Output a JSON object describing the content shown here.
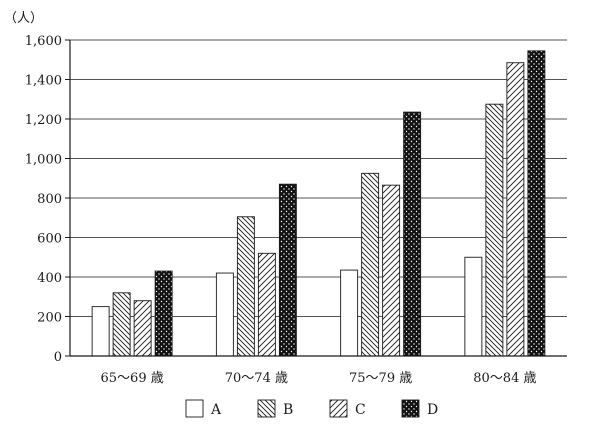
{
  "chart_data": {
    "type": "bar",
    "unit_label": "（人）",
    "categories": [
      "65〜69 歳",
      "70〜74 歳",
      "75〜79 歳",
      "80〜84 歳"
    ],
    "series": [
      {
        "name": "A",
        "pattern": "blank",
        "values": [
          250,
          420,
          435,
          500
        ]
      },
      {
        "name": "B",
        "pattern": "backslash-hatch",
        "values": [
          320,
          705,
          925,
          1275
        ]
      },
      {
        "name": "C",
        "pattern": "slash-hatch",
        "values": [
          280,
          520,
          865,
          1485
        ]
      },
      {
        "name": "D",
        "pattern": "dotted-black",
        "values": [
          430,
          870,
          1235,
          1545
        ]
      }
    ],
    "ylim": [
      0,
      1600
    ],
    "yticks": [
      0,
      200,
      400,
      600,
      800,
      1000,
      1200,
      1400,
      1600
    ],
    "ytick_labels": [
      "0",
      "200",
      "400",
      "600",
      "800",
      "1,000",
      "1,200",
      "1,400",
      "1,600"
    ],
    "grid": "horizontal",
    "legend_position": "bottom-center",
    "colors": {
      "axis": "#1a1a1a",
      "bar_fill": "#ffffff",
      "dark_bar_fill": "#111111"
    }
  }
}
